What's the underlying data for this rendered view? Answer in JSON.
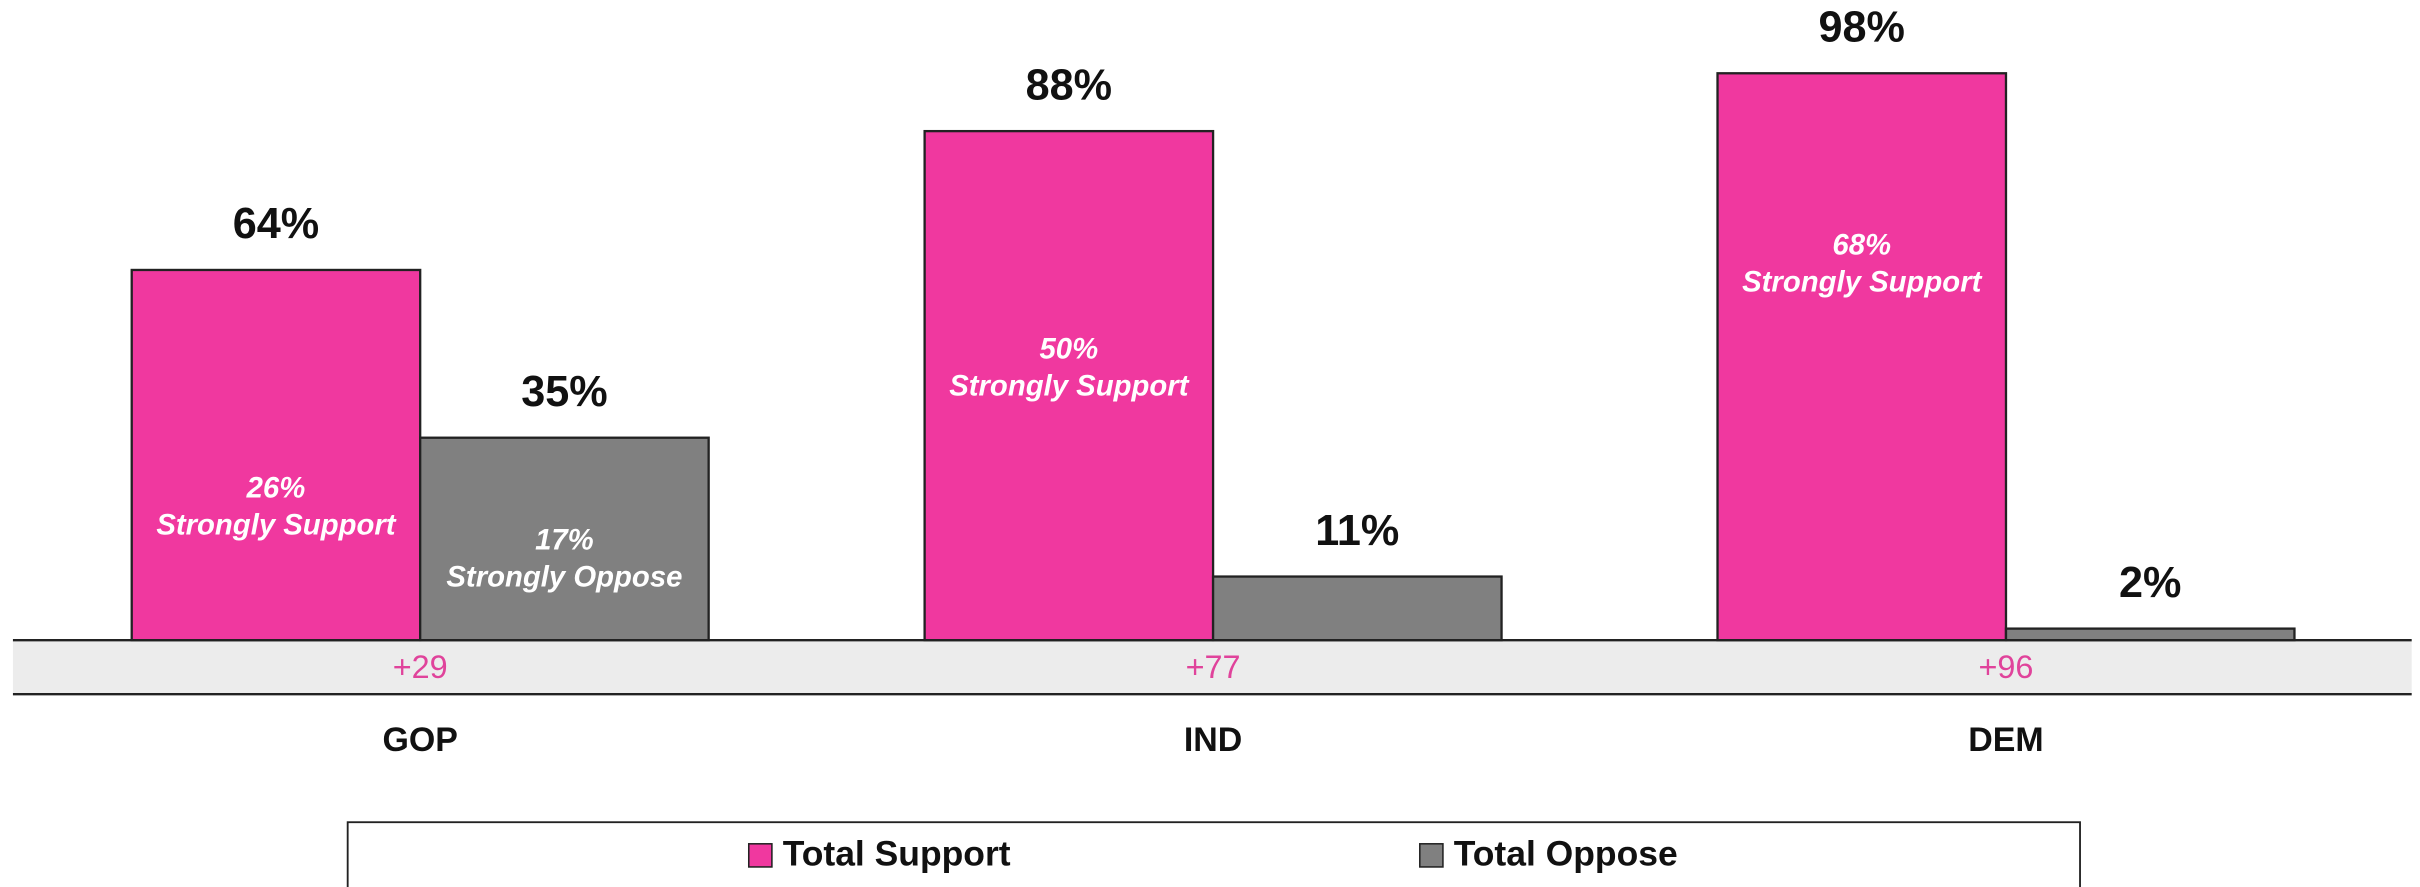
{
  "chart_data": {
    "type": "bar",
    "categories": [
      "GOP",
      "IND",
      "DEM"
    ],
    "series": [
      {
        "name": "Total Support",
        "color": "#f0389f",
        "values": [
          64,
          88,
          98
        ],
        "value_labels": [
          "64%",
          "88%",
          "98%"
        ]
      },
      {
        "name": "Total Oppose",
        "color": "#808080",
        "values": [
          35,
          11,
          2
        ],
        "value_labels": [
          "35%",
          "11%",
          "2%"
        ]
      }
    ],
    "inner_labels": [
      {
        "name": "Strongly Support",
        "values": [
          26,
          50,
          68
        ],
        "value_labels": [
          "26%",
          "50%",
          "68%"
        ]
      },
      {
        "name": "Strongly Oppose",
        "values": [
          17,
          null,
          null
        ],
        "value_labels": [
          "17%",
          null,
          null
        ]
      }
    ],
    "net": {
      "values": [
        29,
        77,
        96
      ],
      "value_labels": [
        "+29",
        "+77",
        "+96"
      ]
    },
    "ylim": [
      0,
      100
    ]
  }
}
